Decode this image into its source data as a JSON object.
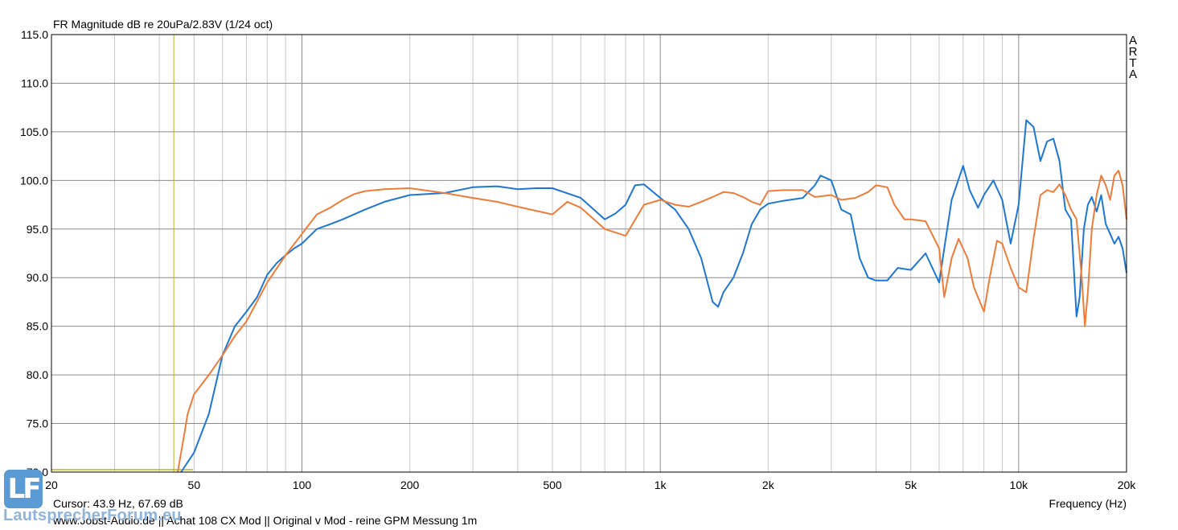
{
  "chart_data": {
    "type": "line",
    "title": "FR Magnitude dB re 20uPa/2.83V (1/24 oct)",
    "xlabel": "Frequency (Hz)",
    "ylabel": "",
    "x_scale": "log",
    "xlim": [
      20,
      20000
    ],
    "ylim": [
      70,
      115
    ],
    "grid": true,
    "y_ticks": [
      "115.0",
      "110.0",
      "105.0",
      "100.0",
      "95.0",
      "90.0",
      "85.0",
      "80.0",
      "75.0",
      "70.0"
    ],
    "y_tick_values": [
      115,
      110,
      105,
      100,
      95,
      90,
      85,
      80,
      75,
      70
    ],
    "x_ticks": [
      "20",
      "50",
      "100",
      "200",
      "500",
      "1k",
      "2k",
      "5k",
      "10k",
      "20k"
    ],
    "x_tick_values": [
      20,
      50,
      100,
      200,
      500,
      1000,
      2000,
      5000,
      10000,
      20000
    ],
    "cursor": {
      "freq": 43.9,
      "level": 67.69
    },
    "series": [
      {
        "color": "#1f77d4",
        "x": [
          46,
          50,
          55,
          60,
          65,
          70,
          75,
          80,
          85,
          90,
          95,
          100,
          110,
          120,
          130,
          150,
          170,
          200,
          250,
          300,
          350,
          400,
          450,
          500,
          600,
          700,
          750,
          800,
          850,
          900,
          1000,
          1100,
          1200,
          1300,
          1400,
          1450,
          1500,
          1600,
          1700,
          1800,
          1900,
          2000,
          2200,
          2500,
          2700,
          2800,
          3000,
          3200,
          3400,
          3600,
          3800,
          4000,
          4300,
          4600,
          5000,
          5500,
          6000,
          6200,
          6500,
          7000,
          7300,
          7700,
          8000,
          8500,
          9000,
          9500,
          10000,
          10500,
          11000,
          11500,
          12000,
          12500,
          13000,
          13500,
          14000,
          14500,
          14800,
          15200,
          15600,
          16000,
          16500,
          17000,
          17500,
          18000,
          18500,
          19000,
          19500,
          20000
        ],
        "values": [
          70,
          72,
          76,
          82,
          85,
          86.5,
          88,
          90.3,
          91.5,
          92.3,
          93,
          93.5,
          95,
          95.5,
          96,
          97,
          97.8,
          98.5,
          98.7,
          99.3,
          99.4,
          99.1,
          99.2,
          99.2,
          98.2,
          96,
          96.6,
          97.5,
          99.5,
          99.6,
          98.2,
          97,
          95,
          92,
          87.5,
          87,
          88.5,
          90,
          92.5,
          95.5,
          97,
          97.6,
          97.9,
          98.2,
          99.5,
          100.5,
          100,
          97,
          96.5,
          92,
          90,
          89.7,
          89.7,
          91,
          90.8,
          92.5,
          89.5,
          93,
          98,
          101.5,
          99,
          97.2,
          98.5,
          100,
          98,
          93.5,
          97.5,
          106.2,
          105.5,
          102,
          104,
          104.3,
          102,
          97,
          96,
          86,
          88,
          95,
          97.5,
          98.3,
          96.8,
          98.5,
          95.5,
          94.5,
          93.5,
          94.2,
          93,
          90.5
        ]
      },
      {
        "color": "#f07c3a",
        "x": [
          45,
          47,
          48,
          50,
          55,
          60,
          65,
          70,
          80,
          90,
          100,
          110,
          120,
          130,
          140,
          150,
          170,
          200,
          250,
          300,
          350,
          400,
          500,
          550,
          600,
          700,
          800,
          900,
          1000,
          1100,
          1200,
          1300,
          1400,
          1500,
          1600,
          1700,
          1800,
          1900,
          2000,
          2200,
          2500,
          2700,
          3000,
          3200,
          3500,
          3800,
          4000,
          4300,
          4500,
          4800,
          5000,
          5500,
          6000,
          6200,
          6500,
          6800,
          7200,
          7500,
          8000,
          8300,
          8700,
          9000,
          9500,
          10000,
          10500,
          11000,
          11500,
          12000,
          12500,
          13000,
          13500,
          14000,
          14500,
          15000,
          15300,
          15600,
          16000,
          16500,
          17000,
          17500,
          18000,
          18500,
          19000,
          19500,
          20000
        ],
        "values": [
          70,
          74,
          76,
          78,
          80,
          82,
          84,
          85.5,
          89.5,
          92.3,
          94.5,
          96.5,
          97.2,
          98,
          98.6,
          98.9,
          99.1,
          99.2,
          98.7,
          98.2,
          97.8,
          97.3,
          96.5,
          97.8,
          97.2,
          95,
          94.3,
          97.5,
          98,
          97.5,
          97.3,
          97.8,
          98.3,
          98.8,
          98.7,
          98.3,
          97.8,
          97.5,
          98.9,
          99,
          99,
          98.3,
          98.5,
          98,
          98.2,
          98.8,
          99.5,
          99.3,
          97.5,
          96,
          96,
          95.8,
          93,
          88,
          92,
          94,
          92,
          89,
          86.5,
          90,
          93.8,
          93.5,
          91,
          89,
          88.5,
          94,
          98.5,
          99,
          98.8,
          99.6,
          98.5,
          97,
          96,
          90,
          85,
          88.5,
          95,
          98.5,
          100.5,
          99.5,
          98,
          100.5,
          101,
          99.5,
          96
        ]
      }
    ]
  },
  "ui": {
    "cursor_text": "Cursor: 43.9 Hz, 67.69 dB",
    "footer_text": "www.Jobst-Audio.de  ||  Achat  108 CX Mod  ||  Original v Mod - reine GPM Messung 1m",
    "brand_letters": [
      "A",
      "R",
      "T",
      "A"
    ],
    "logo_letters": "LF",
    "logo_site": "LautsprecherForum.eu",
    "colors": {
      "grid_major": "#8c8c8c",
      "grid_minor": "#c8c8c8",
      "cursor": "#b5b52a",
      "axis": "#000000"
    }
  }
}
